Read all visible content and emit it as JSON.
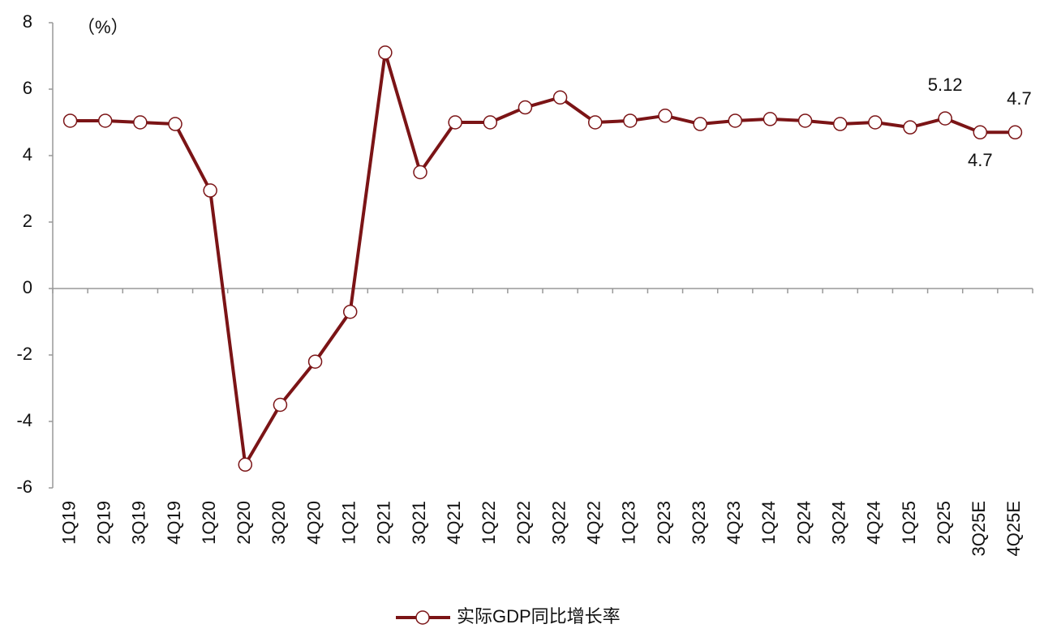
{
  "chart_data": {
    "type": "line",
    "y_unit": "（%）",
    "categories": [
      "1Q19",
      "2Q19",
      "3Q19",
      "4Q19",
      "1Q20",
      "2Q20",
      "3Q20",
      "4Q20",
      "1Q21",
      "2Q21",
      "3Q21",
      "4Q21",
      "1Q22",
      "2Q22",
      "3Q22",
      "4Q22",
      "1Q23",
      "2Q23",
      "3Q23",
      "4Q23",
      "1Q24",
      "2Q24",
      "3Q24",
      "4Q24",
      "1Q25",
      "2Q25",
      "3Q25E",
      "4Q25E"
    ],
    "series": [
      {
        "name": "实际GDP同比增长率",
        "color": "#7b1416",
        "values": [
          5.05,
          5.05,
          5.0,
          4.95,
          2.95,
          -5.3,
          -3.5,
          -2.2,
          -0.7,
          7.1,
          3.5,
          5.0,
          5.0,
          5.45,
          5.75,
          5.0,
          5.05,
          5.2,
          4.95,
          5.05,
          5.1,
          5.05,
          4.95,
          5.0,
          4.85,
          5.12,
          4.7,
          4.7
        ],
        "value_labels": [
          null,
          null,
          null,
          null,
          null,
          null,
          null,
          null,
          null,
          null,
          null,
          null,
          null,
          null,
          null,
          null,
          null,
          null,
          null,
          null,
          null,
          null,
          null,
          null,
          null,
          "5.12",
          "4.7",
          "4.7"
        ]
      }
    ],
    "ylim": [
      -6,
      8
    ],
    "yticks": [
      -6,
      -4,
      -2,
      0,
      2,
      4,
      6,
      8
    ],
    "legend": "bottom"
  }
}
